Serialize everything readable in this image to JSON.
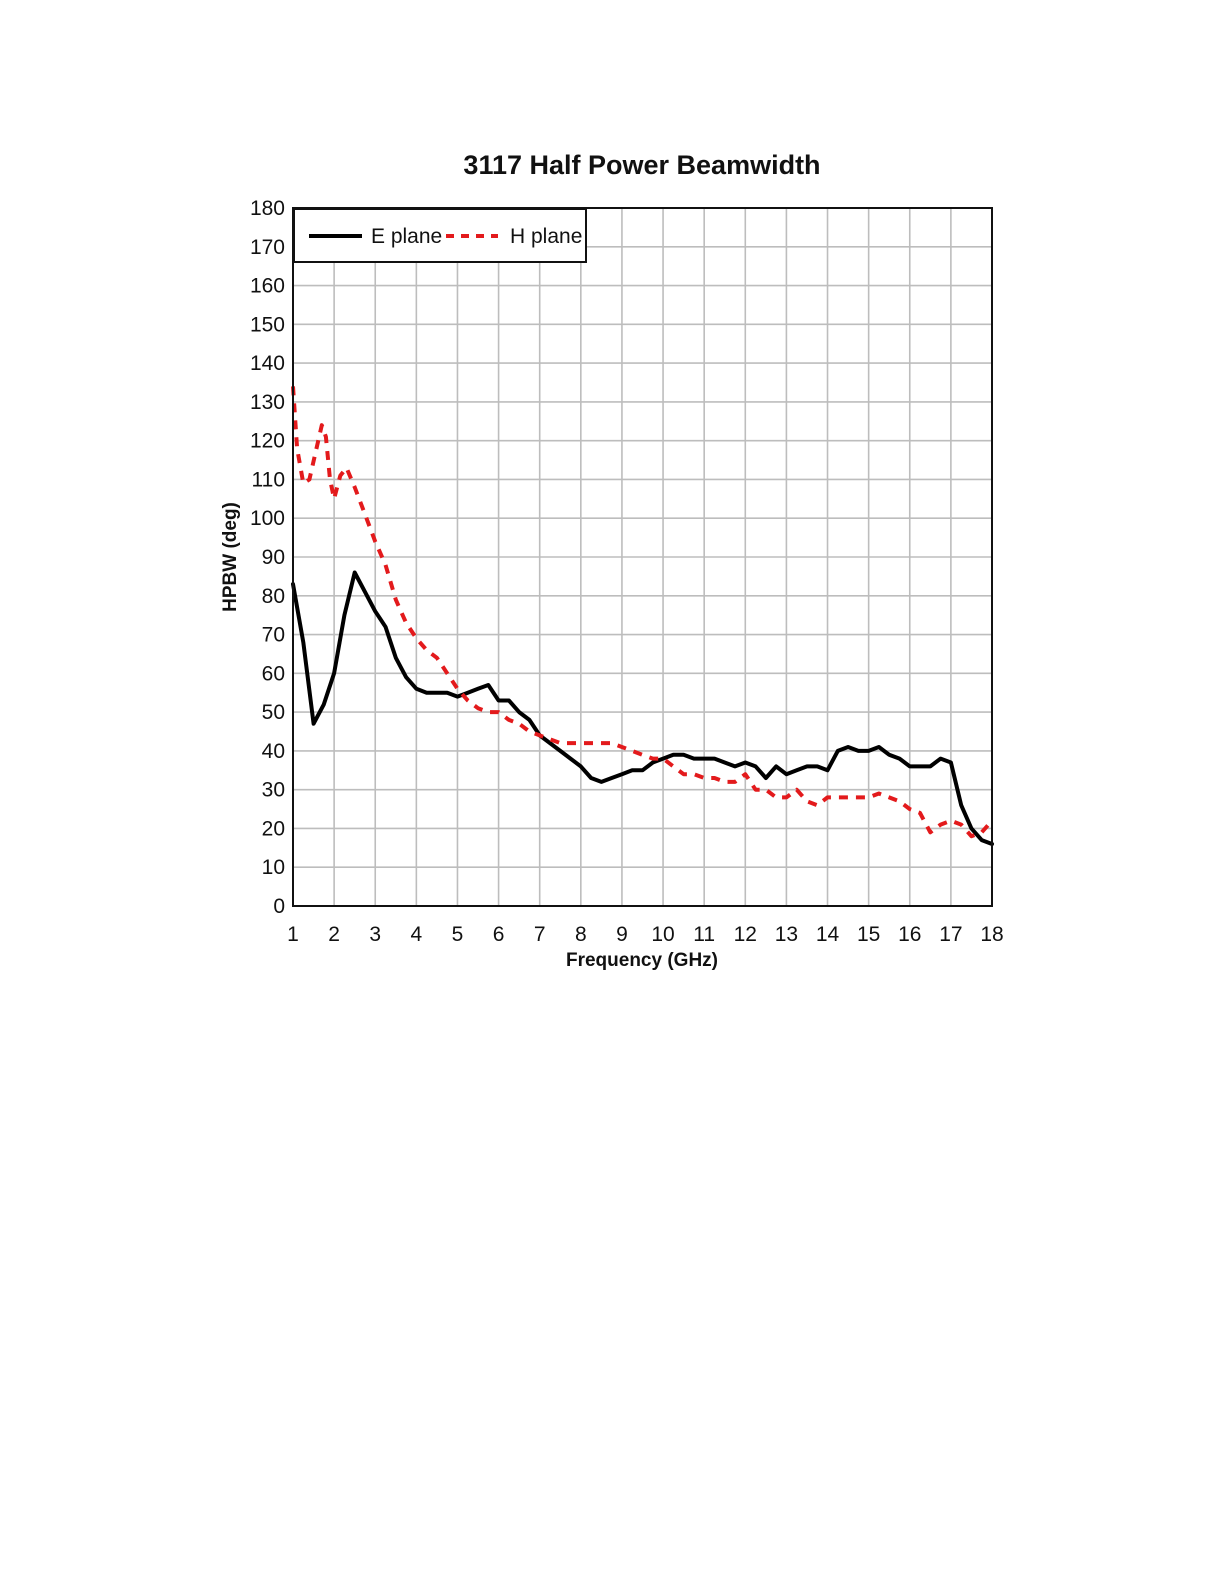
{
  "chart_data": {
    "type": "line",
    "title": "3117 Half Power Beamwidth",
    "xlabel": "Frequency (GHz)",
    "ylabel": "HPBW (deg)",
    "xlim": [
      1,
      18
    ],
    "ylim": [
      0,
      180
    ],
    "x_ticks": [
      1,
      2,
      3,
      4,
      5,
      6,
      7,
      8,
      9,
      10,
      11,
      12,
      13,
      14,
      15,
      16,
      17,
      18
    ],
    "y_ticks": [
      0,
      10,
      20,
      30,
      40,
      50,
      60,
      70,
      80,
      90,
      100,
      110,
      120,
      130,
      140,
      150,
      160,
      170,
      180
    ],
    "x_tick_labels": [
      "1",
      "2",
      "3",
      "4",
      "5",
      "6",
      "7",
      "8",
      "9",
      "10",
      "11",
      "12",
      "13",
      "14",
      "15",
      "16",
      "17",
      "18"
    ],
    "y_tick_labels": [
      "0",
      "10",
      "20",
      "30",
      "40",
      "50",
      "60",
      "70",
      "80",
      "90",
      "100",
      "110",
      "120",
      "130",
      "140",
      "150",
      "160",
      "170",
      "180"
    ],
    "grid": true,
    "legend": {
      "position": "top-left",
      "entries": [
        "E plane",
        "H plane"
      ]
    },
    "series": [
      {
        "name": "E plane",
        "color": "#000000",
        "style": "solid",
        "x": [
          1.0,
          1.25,
          1.5,
          1.75,
          2.0,
          2.25,
          2.5,
          2.75,
          3.0,
          3.25,
          3.5,
          3.75,
          4.0,
          4.25,
          4.5,
          4.75,
          5.0,
          5.25,
          5.5,
          5.75,
          6.0,
          6.25,
          6.5,
          6.75,
          7.0,
          7.25,
          7.5,
          7.75,
          8.0,
          8.25,
          8.5,
          8.75,
          9.0,
          9.25,
          9.5,
          9.75,
          10.0,
          10.25,
          10.5,
          10.75,
          11.0,
          11.25,
          11.5,
          11.75,
          12.0,
          12.25,
          12.5,
          12.75,
          13.0,
          13.25,
          13.5,
          13.75,
          14.0,
          14.25,
          14.5,
          14.75,
          15.0,
          15.25,
          15.5,
          15.75,
          16.0,
          16.25,
          16.5,
          16.75,
          17.0,
          17.25,
          17.5,
          17.75,
          18.0
        ],
        "y": [
          83,
          68,
          47,
          52,
          60,
          75,
          86,
          81,
          76,
          72,
          64,
          59,
          56,
          55,
          55,
          55,
          54,
          55,
          56,
          57,
          53,
          53,
          50,
          48,
          44,
          42,
          40,
          38,
          36,
          33,
          32,
          33,
          34,
          35,
          35,
          37,
          38,
          39,
          39,
          38,
          38,
          38,
          37,
          36,
          37,
          36,
          33,
          36,
          34,
          35,
          36,
          36,
          35,
          40,
          41,
          40,
          40,
          41,
          39,
          38,
          36,
          36,
          36,
          38,
          37,
          26,
          20,
          17,
          16
        ]
      },
      {
        "name": "H plane",
        "color": "#e31a1c",
        "style": "dashed",
        "x": [
          1.0,
          1.1,
          1.25,
          1.4,
          1.55,
          1.7,
          1.8,
          1.9,
          2.0,
          2.15,
          2.3,
          2.5,
          2.75,
          3.0,
          3.25,
          3.5,
          3.75,
          4.0,
          4.25,
          4.5,
          4.75,
          5.0,
          5.25,
          5.5,
          5.75,
          6.0,
          6.25,
          6.5,
          6.75,
          7.0,
          7.25,
          7.5,
          7.75,
          8.0,
          8.25,
          8.5,
          8.75,
          9.0,
          9.25,
          9.5,
          9.75,
          10.0,
          10.25,
          10.5,
          10.75,
          11.0,
          11.25,
          11.5,
          11.75,
          12.0,
          12.25,
          12.5,
          12.75,
          13.0,
          13.25,
          13.5,
          13.75,
          14.0,
          14.25,
          14.5,
          14.75,
          15.0,
          15.25,
          15.5,
          15.75,
          16.0,
          16.25,
          16.5,
          16.75,
          17.0,
          17.25,
          17.5,
          17.75,
          18.0
        ],
        "y": [
          134,
          118,
          109,
          110,
          117,
          124,
          121,
          110,
          105,
          111,
          113,
          108,
          101,
          94,
          88,
          79,
          73,
          69,
          66,
          64,
          60,
          56,
          53,
          51,
          50,
          50,
          48,
          47,
          45,
          44,
          43,
          42,
          42,
          42,
          42,
          42,
          42,
          41,
          40,
          39,
          38,
          38,
          36,
          34,
          34,
          33,
          33,
          32,
          32,
          34,
          30,
          30,
          28,
          28,
          30,
          27,
          26,
          28,
          28,
          28,
          28,
          28,
          29,
          28,
          27,
          25,
          24,
          19,
          21,
          22,
          21,
          18,
          19,
          22
        ]
      }
    ]
  }
}
